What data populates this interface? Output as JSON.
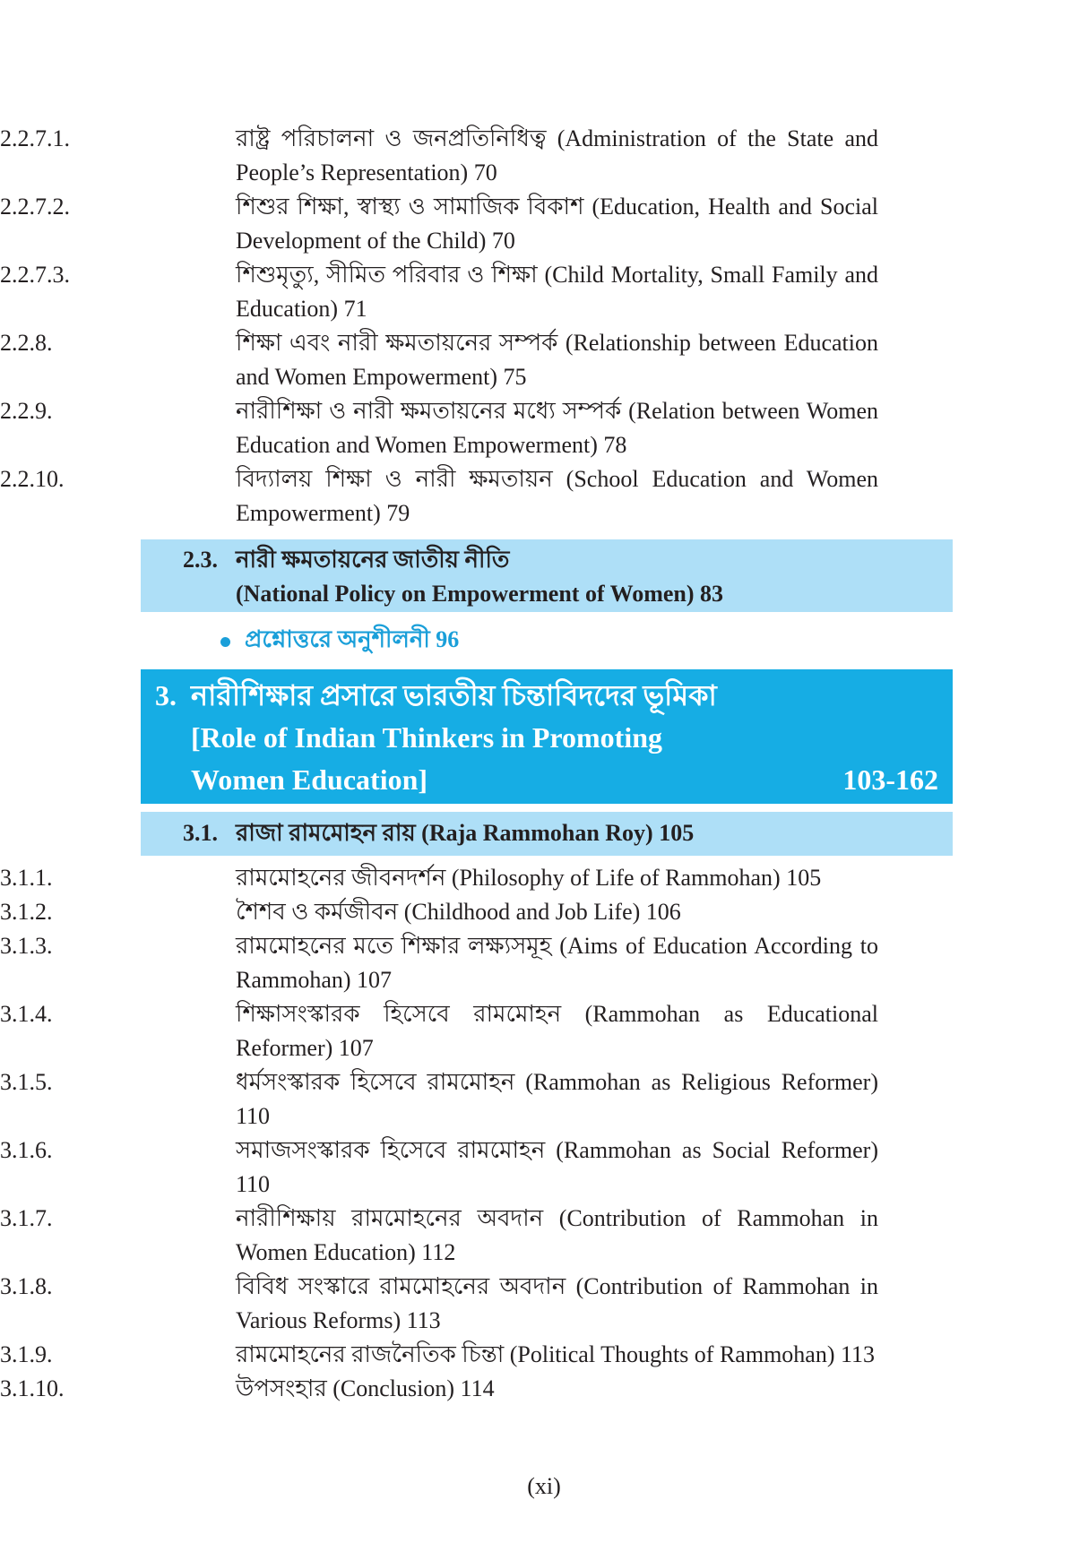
{
  "top_entries": [
    {
      "num": "2.2.7.1.",
      "text": "রাষ্ট্র পরিচালনা ও জনপ্রতিনিধিত্ব (Administration of the State and People’s Representation) 70"
    },
    {
      "num": "2.2.7.2.",
      "text": "শিশুর শিক্ষা, স্বাস্থ্য ও সামাজিক বিকাশ (Education, Health and Social Development of the Child) 70"
    },
    {
      "num": "2.2.7.3.",
      "text": "শিশুমৃত্যু, সীমিত পরিবার ও শিক্ষা (Child Mortality, Small Family and Education) 71"
    },
    {
      "num": "2.2.8.",
      "text": "শিক্ষা এবং নারী ক্ষমতায়নের সম্পর্ক (Relationship between Education and Women Empowerment) 75"
    },
    {
      "num": "2.2.9.",
      "text": "নারীশিক্ষা ও নারী ক্ষমতায়নের মধ্যে সম্পর্ক (Relation between Women Education and Women Empowerment) 78"
    },
    {
      "num": "2.2.10.",
      "text": "বিদ্যালয় শিক্ষা ও নারী ক্ষমতায়ন (School Education and Women Empowerment) 79"
    }
  ],
  "section_2_3": {
    "num": "2.3.",
    "bn": "নারী ক্ষমতায়নের জাতীয় নীতি",
    "en": "(National Policy on Empowerment of Women) 83"
  },
  "exercise": {
    "text": "প্রশ্নোত্তরে অনুশীলনী 96"
  },
  "chapter_3": {
    "num": "3.",
    "bn": "নারীশিক্ষার প্রসারে ভারতীয় চিন্তাবিদদের ভূমিকা",
    "en_line1": "[Role of Indian Thinkers in Promoting",
    "en_line2": "Women Education]",
    "pages": "103-162"
  },
  "section_3_1": {
    "num": "3.1.",
    "text": "রাজা রামমোহন রায় (Raja Rammohan Roy) 105"
  },
  "entries_3_1": [
    {
      "num": "3.1.1.",
      "text": "রামমোহনের জীবনদর্শন (Philosophy of Life of Rammohan) 105"
    },
    {
      "num": "3.1.2.",
      "text": "শৈশব ও কর্মজীবন (Childhood and Job Life) 106"
    },
    {
      "num": "3.1.3.",
      "text": "রামমোহনের মতে শিক্ষার লক্ষ্যসমূহ (Aims of Education According to Rammohan) 107"
    },
    {
      "num": "3.1.4.",
      "text": "শিক্ষাসংস্কারক হিসেবে রামমোহন (Rammohan as Educational Reformer) 107"
    },
    {
      "num": "3.1.5.",
      "text": "ধর্মসংস্কারক হিসেবে রামমোহন (Rammohan as Religious Reformer) 110"
    },
    {
      "num": "3.1.6.",
      "text": "সমাজসংস্কারক হিসেবে রামমোহন (Rammohan as Social Reformer) 110"
    },
    {
      "num": "3.1.7.",
      "text": "নারীশিক্ষায় রামমোহনের অবদান (Contribution of Rammohan in Women Education) 112"
    },
    {
      "num": "3.1.8.",
      "text": "বিবিধ সংস্কারে রামমোহনের অবদান (Contribution of Rammohan in Various Reforms) 113"
    },
    {
      "num": "3.1.9.",
      "text": "রামমোহনের রাজনৈতিক চিন্তা (Political Thoughts of Rammohan) 113"
    },
    {
      "num": "3.1.10.",
      "text": "উপসংহার (Conclusion) 114"
    }
  ],
  "footer": {
    "page_number": "(xi)"
  },
  "colors": {
    "light_box": "#aedff7",
    "dark_box": "#16ade4",
    "accent_text": "#1a9fd9"
  }
}
